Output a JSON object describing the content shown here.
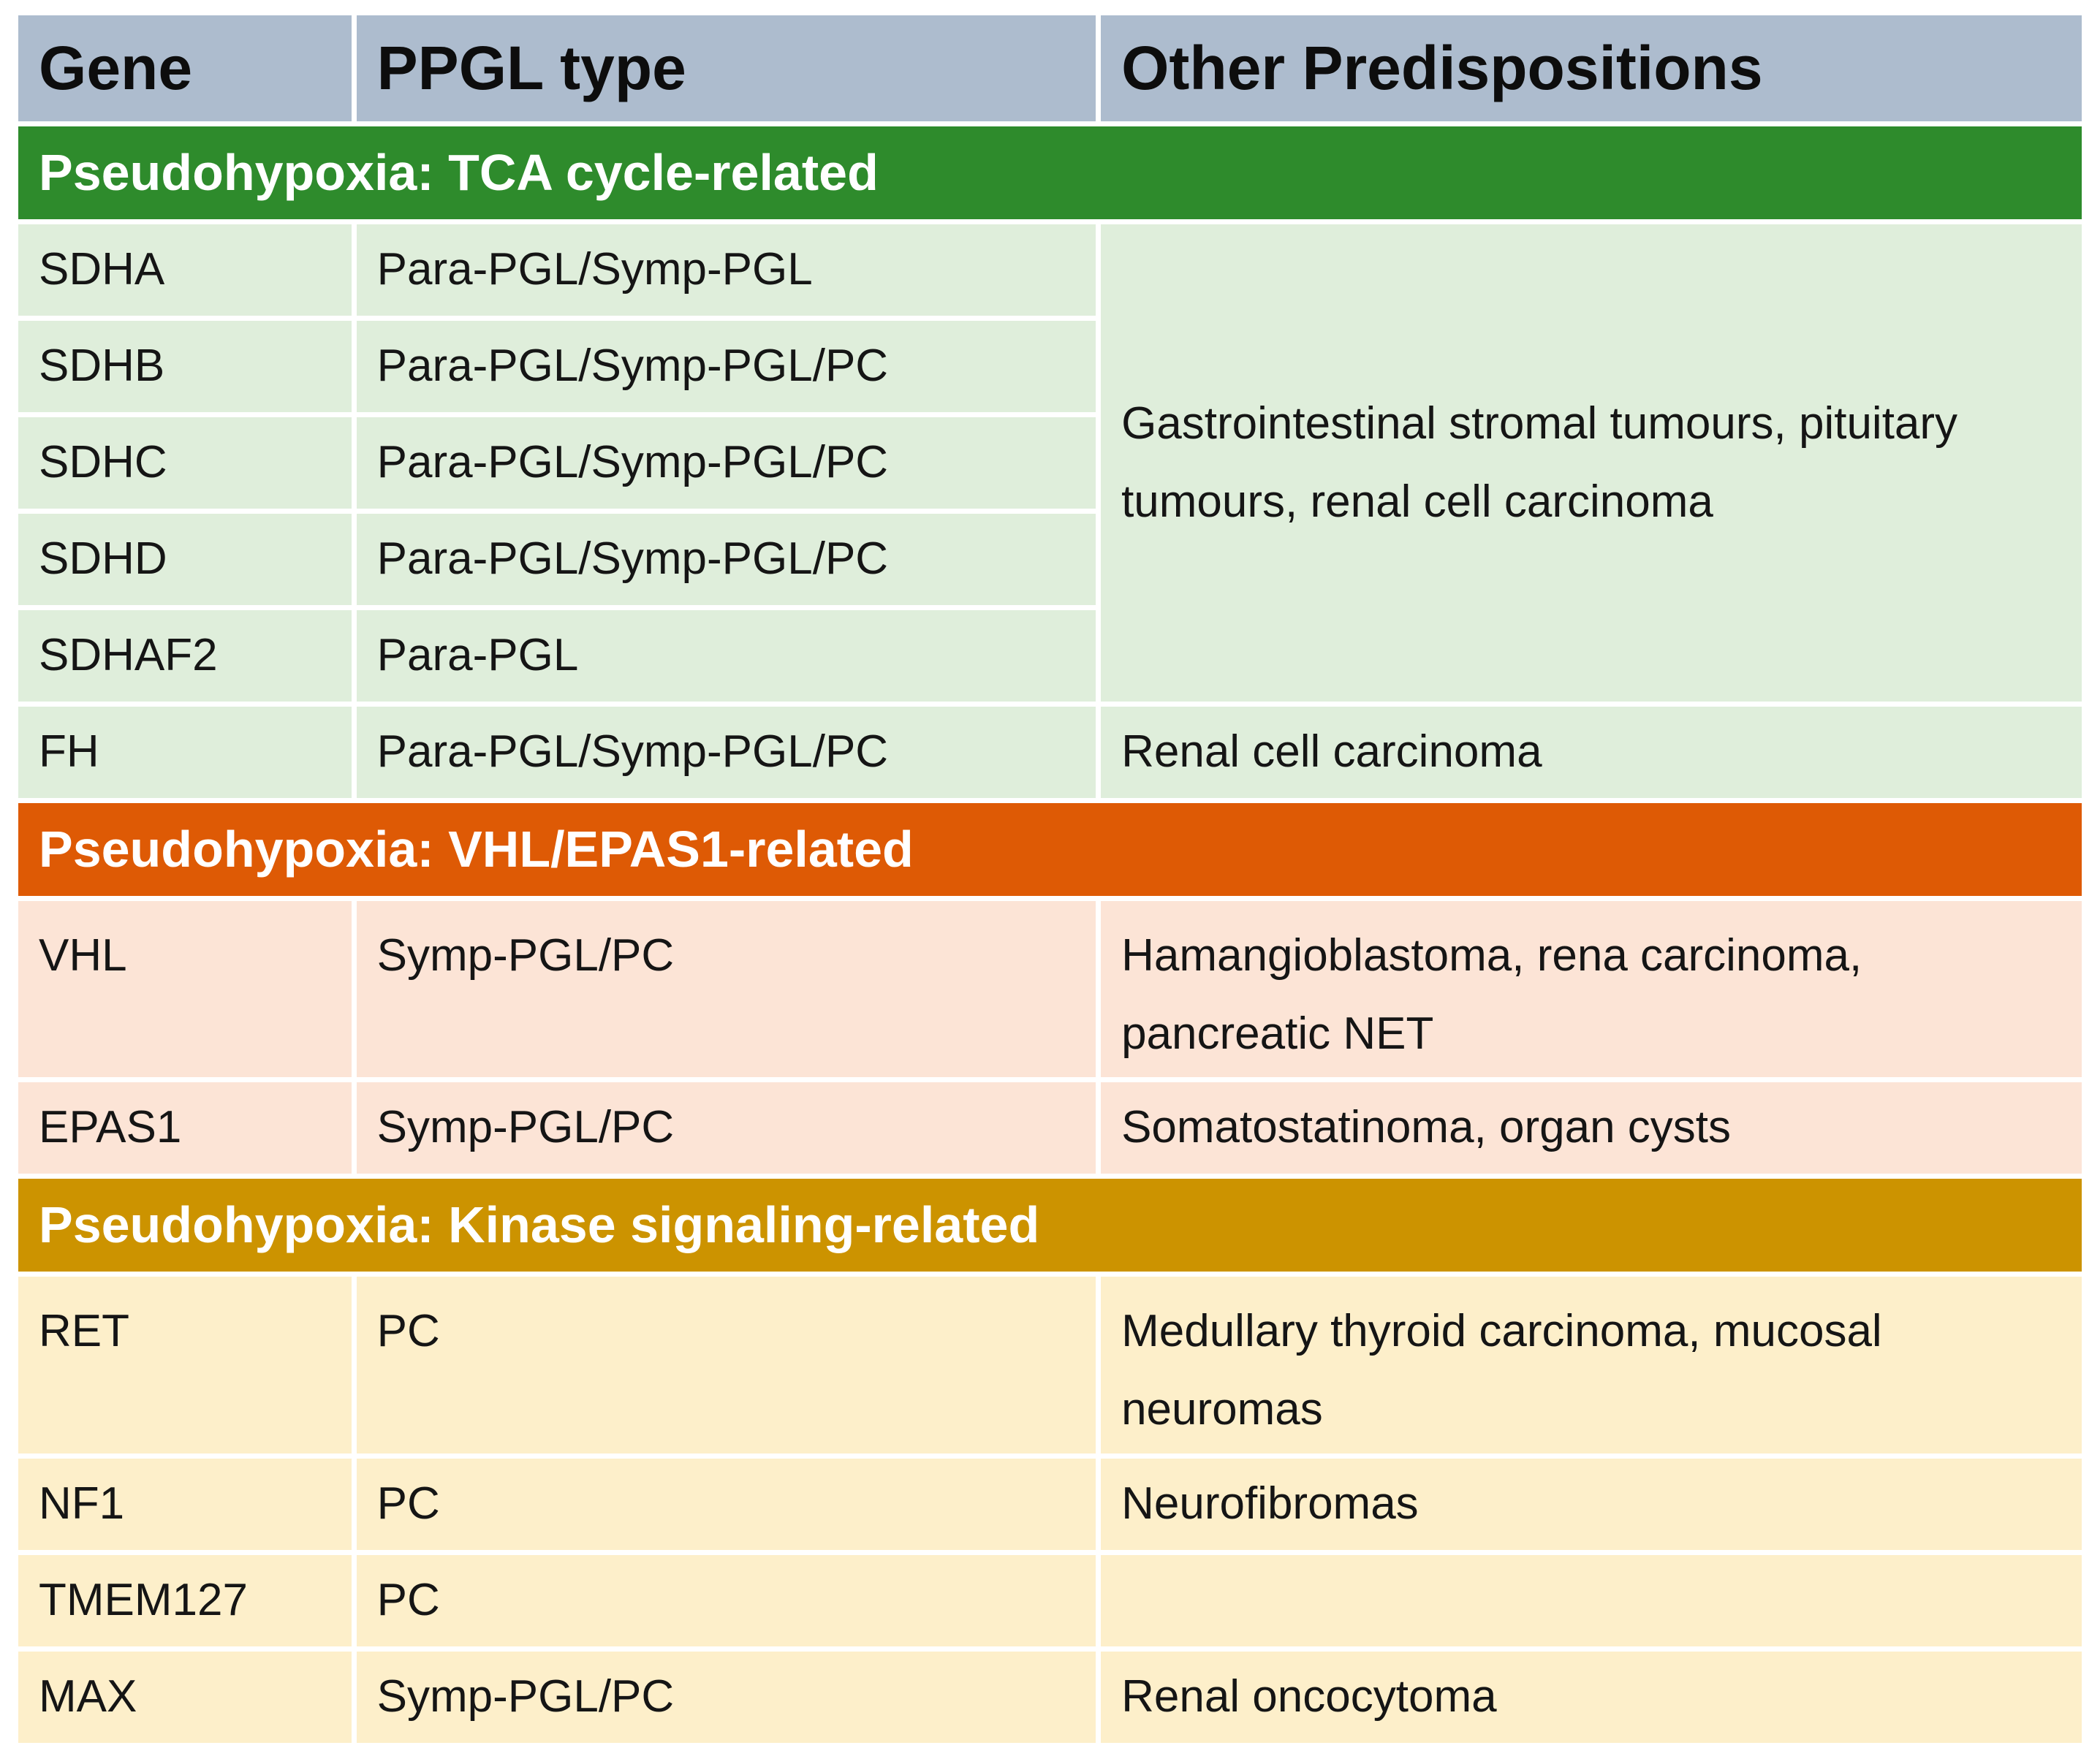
{
  "table": {
    "columns": [
      "Gene",
      "PPGL type",
      "Other Predispositions"
    ],
    "sections": [
      {
        "header": "Pseudohypoxia: TCA cycle-related",
        "merged_other": "Gastrointestinal stromal tumours, pituitary tumours, renal cell carcinoma",
        "rows": [
          {
            "gene": "SDHA",
            "ppgl": "Para-PGL/Symp-PGL",
            "other": ""
          },
          {
            "gene": "SDHB",
            "ppgl": "Para-PGL/Symp-PGL/PC",
            "other": ""
          },
          {
            "gene": "SDHC",
            "ppgl": "Para-PGL/Symp-PGL/PC",
            "other": ""
          },
          {
            "gene": "SDHD",
            "ppgl": "Para-PGL/Symp-PGL/PC",
            "other": ""
          },
          {
            "gene": "SDHAF2",
            "ppgl": "Para-PGL",
            "other": ""
          },
          {
            "gene": "FH",
            "ppgl": "Para-PGL/Symp-PGL/PC",
            "other": "Renal cell carcinoma"
          }
        ]
      },
      {
        "header": "Pseudohypoxia: VHL/EPAS1-related",
        "rows": [
          {
            "gene": "VHL",
            "ppgl": "Symp-PGL/PC",
            "other": "Hamangioblastoma, rena carcinoma, pancreatic NET"
          },
          {
            "gene": "EPAS1",
            "ppgl": "Symp-PGL/PC",
            "other": "Somatostatinoma, organ cysts"
          }
        ]
      },
      {
        "header": "Pseudohypoxia: Kinase signaling-related",
        "rows": [
          {
            "gene": "RET",
            "ppgl": "PC",
            "other": "Medullary thyroid carcinoma, mucosal neuromas"
          },
          {
            "gene": "NF1",
            "ppgl": "PC",
            "other": "Neurofibromas"
          },
          {
            "gene": "TMEM127",
            "ppgl": "PC",
            "other": ""
          },
          {
            "gene": "MAX",
            "ppgl": "Symp-PGL/PC",
            "other": "Renal oncocytoma"
          }
        ]
      }
    ],
    "colors": {
      "column_header_bg": "#adbcce",
      "tca_band": "#2e8b2c",
      "tca_row_bg": "#dfeedb",
      "vhl_band": "#de5a05",
      "vhl_row_bg": "#fce4d6",
      "kinase_band": "#cc9300",
      "kinase_row_bg": "#fdefca",
      "band_text": "#ffffff",
      "body_text": "#151515"
    }
  }
}
